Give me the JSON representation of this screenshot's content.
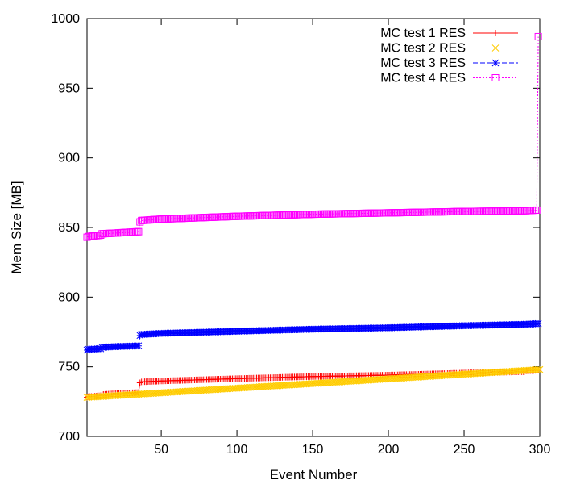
{
  "chart_data": {
    "type": "line",
    "title": "",
    "xlabel": "Event Number",
    "ylabel": "Mem Size [MB]",
    "xlim": [
      1,
      300
    ],
    "ylim": [
      700,
      1000
    ],
    "x_ticks": [
      50,
      100,
      150,
      200,
      250,
      300
    ],
    "y_ticks": [
      700,
      750,
      800,
      850,
      900,
      950,
      1000
    ],
    "grid": false,
    "legend_position": "top-right",
    "series": [
      {
        "name": "MC test 1 RES",
        "color": "#ff0000",
        "marker": "plus",
        "dash": "solid",
        "x": [
          1,
          2,
          10,
          11,
          20,
          35,
          36,
          37,
          50,
          100,
          150,
          200,
          250,
          290,
          291,
          298,
          299
        ],
        "y": [
          728,
          728.5,
          729.2,
          730,
          730.8,
          731.5,
          738.5,
          739.2,
          739.8,
          741.5,
          743,
          744,
          745.5,
          746.5,
          747,
          747.5,
          747.5
        ]
      },
      {
        "name": "MC test 2 RES",
        "color": "#ffcc00",
        "marker": "x",
        "dash": "dashed",
        "x": [
          1,
          300
        ],
        "y": [
          728,
          748
        ]
      },
      {
        "name": "MC test 3 RES",
        "color": "#0000ff",
        "marker": "star",
        "dash": "dashed",
        "x": [
          1,
          2,
          10,
          11,
          20,
          35,
          36,
          37,
          50,
          100,
          150,
          200,
          250,
          290,
          299
        ],
        "y": [
          762,
          762.5,
          763,
          764,
          764.5,
          765,
          772.5,
          773.2,
          774,
          775.5,
          777,
          778,
          779.5,
          780.5,
          781
        ]
      },
      {
        "name": "MC test 4 RES",
        "color": "#ff00ff",
        "marker": "square",
        "dash": "dotted",
        "x": [
          1,
          2,
          10,
          11,
          20,
          35,
          36,
          37,
          50,
          100,
          150,
          200,
          250,
          290,
          298,
          299
        ],
        "y": [
          843,
          843.5,
          844.5,
          845.5,
          846,
          847,
          854,
          855,
          856,
          858,
          859.5,
          860.5,
          861.5,
          862,
          862.5,
          987
        ]
      }
    ]
  }
}
